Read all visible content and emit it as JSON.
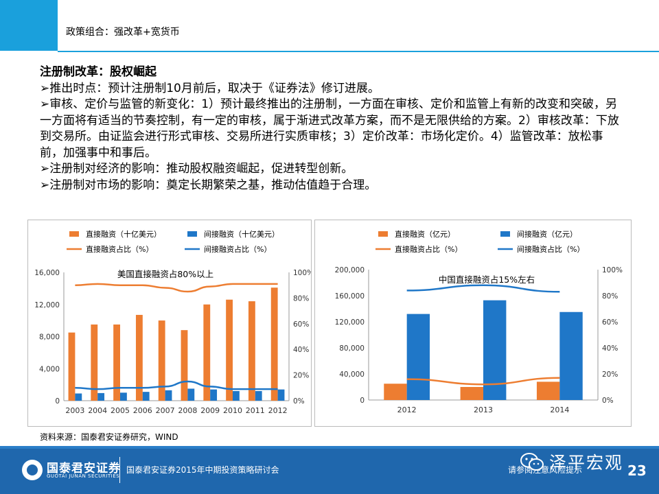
{
  "header": {
    "title": "政策组合：强改革+宽货币"
  },
  "body": {
    "heading": "注册制改革：股权崛起",
    "bullets": [
      "➢推出时点：预计注册制10月前后，取决于《证券法》修订进展。",
      "➢审核、定价与监管的新变化：1）预计最终推出的注册制，一方面在审核、定价和监管上有新的改变和突破，另一方面将有适当的节奏控制，有一定的审核，属于渐进式改革方案，而不是无限供给的方案。2）审核改革：下放到交易所。由证监会进行形式审核、交易所进行实质审核；3）定价改革：市场化定价。4）监管改革：放松事前，加强事中和事后。",
      "➢注册制对经济的影响：推动股权融资崛起，促进转型创新。",
      "➢注册制对市场的影响：奠定长期繁荣之基，推动估值趋于合理。"
    ]
  },
  "colors": {
    "orange": "#ed7d31",
    "blue": "#1f77c8",
    "accent": "#1aa0dc",
    "footer": "#1f67ad"
  },
  "chart_data": [
    {
      "type": "bar",
      "legend": [
        "直接融资（十亿美元）",
        "间接融资（十亿美元）",
        "直接融资占比（%）",
        "间接融资占比（%）"
      ],
      "legend_placement": "top",
      "annotation": "美国直接融资占80%以上",
      "categories": [
        "2003",
        "2004",
        "2005",
        "2006",
        "2007",
        "2008",
        "2009",
        "2010",
        "2011",
        "2012"
      ],
      "series": [
        {
          "name": "直接融资（十亿美元）",
          "kind": "bar",
          "axis": "left",
          "color": "#ed7d31",
          "values": [
            8500,
            9500,
            9500,
            10700,
            10000,
            8800,
            12000,
            12600,
            12400,
            14100
          ]
        },
        {
          "name": "间接融资（十亿美元）",
          "kind": "bar",
          "axis": "left",
          "color": "#1f77c8",
          "values": [
            900,
            950,
            1000,
            1100,
            1300,
            1500,
            1400,
            1200,
            1200,
            1400
          ]
        },
        {
          "name": "直接融资占比（%）",
          "kind": "line",
          "axis": "right",
          "color": "#ed7d31",
          "values": [
            90,
            91,
            90,
            90,
            88,
            85,
            89,
            91,
            91,
            91
          ]
        },
        {
          "name": "间接融资占比（%）",
          "kind": "line",
          "axis": "right",
          "color": "#1f77c8",
          "values": [
            10,
            9,
            10,
            10,
            11,
            15,
            11,
            9,
            9,
            9
          ]
        }
      ],
      "yleft": {
        "range": [
          0,
          16000
        ],
        "ticks": [
          "0",
          "4,000",
          "8,000",
          "12,000",
          "16,000"
        ]
      },
      "yright": {
        "range": [
          0,
          100
        ],
        "ticks": [
          "0%",
          "20%",
          "40%",
          "60%",
          "80%",
          "100%"
        ]
      },
      "grid": false
    },
    {
      "type": "bar",
      "legend": [
        "直接融资（亿元）",
        "间接融资（亿元）",
        "直接融资占比（%）",
        "间接融资占比（%）"
      ],
      "legend_placement": "top",
      "annotation": "中国直接融资占15%左右",
      "categories": [
        "2012",
        "2013",
        "2014"
      ],
      "series": [
        {
          "name": "直接融资（亿元）",
          "kind": "bar",
          "axis": "left",
          "color": "#ed7d31",
          "values": [
            25000,
            20000,
            28000
          ]
        },
        {
          "name": "间接融资（亿元）",
          "kind": "bar",
          "axis": "left",
          "color": "#1f77c8",
          "values": [
            132000,
            153000,
            135000
          ]
        },
        {
          "name": "直接融资占比（%）",
          "kind": "line",
          "axis": "right",
          "color": "#ed7d31",
          "values": [
            16,
            12,
            17
          ]
        },
        {
          "name": "间接融资占比（%）",
          "kind": "line",
          "axis": "right",
          "color": "#1f77c8",
          "values": [
            84,
            88,
            83
          ]
        }
      ],
      "yleft": {
        "range": [
          0,
          200000
        ],
        "ticks": [
          "0",
          "40,000",
          "80,000",
          "120,000",
          "160,000",
          "200,000"
        ]
      },
      "yright": {
        "range": [
          0,
          100
        ],
        "ticks": [
          "0%",
          "20%",
          "40%",
          "60%",
          "80%",
          "100%"
        ]
      },
      "grid": false
    }
  ],
  "source": "资料来源：国泰君安证券研究，WIND",
  "footer": {
    "logo_cn": "国泰君安证券",
    "logo_en": "GUOTAI JUNAN SECURITIES",
    "event": "国泰君安证券2015年中期投资策略研讨会",
    "risk": "请参阅注意风险提示",
    "wechat_name": "泽平宏观",
    "wechat_icon": "wechat-icon",
    "page": "23"
  }
}
